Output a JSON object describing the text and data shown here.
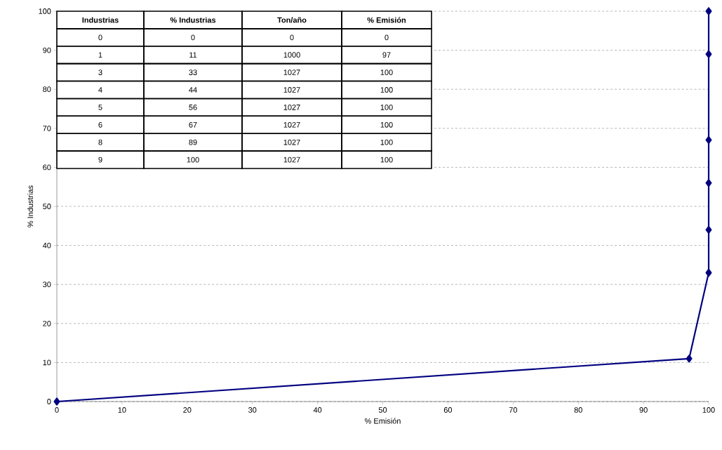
{
  "chart_data": {
    "type": "line",
    "xlabel": "% Emisión",
    "ylabel": "% Industrias",
    "x": [
      0,
      97,
      100,
      100,
      100,
      100,
      100,
      100
    ],
    "values": [
      0,
      11,
      33,
      44,
      56,
      67,
      89,
      100
    ],
    "color": "#000080",
    "marker": "diamond",
    "line_style": "solid",
    "xlim": [
      0,
      100
    ],
    "ylim": [
      0,
      100
    ],
    "xticks": [
      0,
      10,
      20,
      30,
      40,
      50,
      60,
      70,
      80,
      90,
      100
    ],
    "yticks": [
      0,
      10,
      20,
      30,
      40,
      50,
      60,
      70,
      80,
      90,
      100
    ],
    "grid": "y",
    "annotations": [
      "Industrias",
      "% Industrias",
      "Ton/año",
      "% Emisión",
      "0",
      "0",
      "0",
      "0",
      "1",
      "11",
      "1000",
      "97",
      "3",
      "33",
      "1027",
      "100",
      "4",
      "44",
      "1027",
      "100",
      "5",
      "56",
      "1027",
      "100",
      "6",
      "67",
      "1027",
      "100",
      "8",
      "89",
      "1027",
      "100",
      "9",
      "100",
      "1027",
      "100"
    ]
  }
}
